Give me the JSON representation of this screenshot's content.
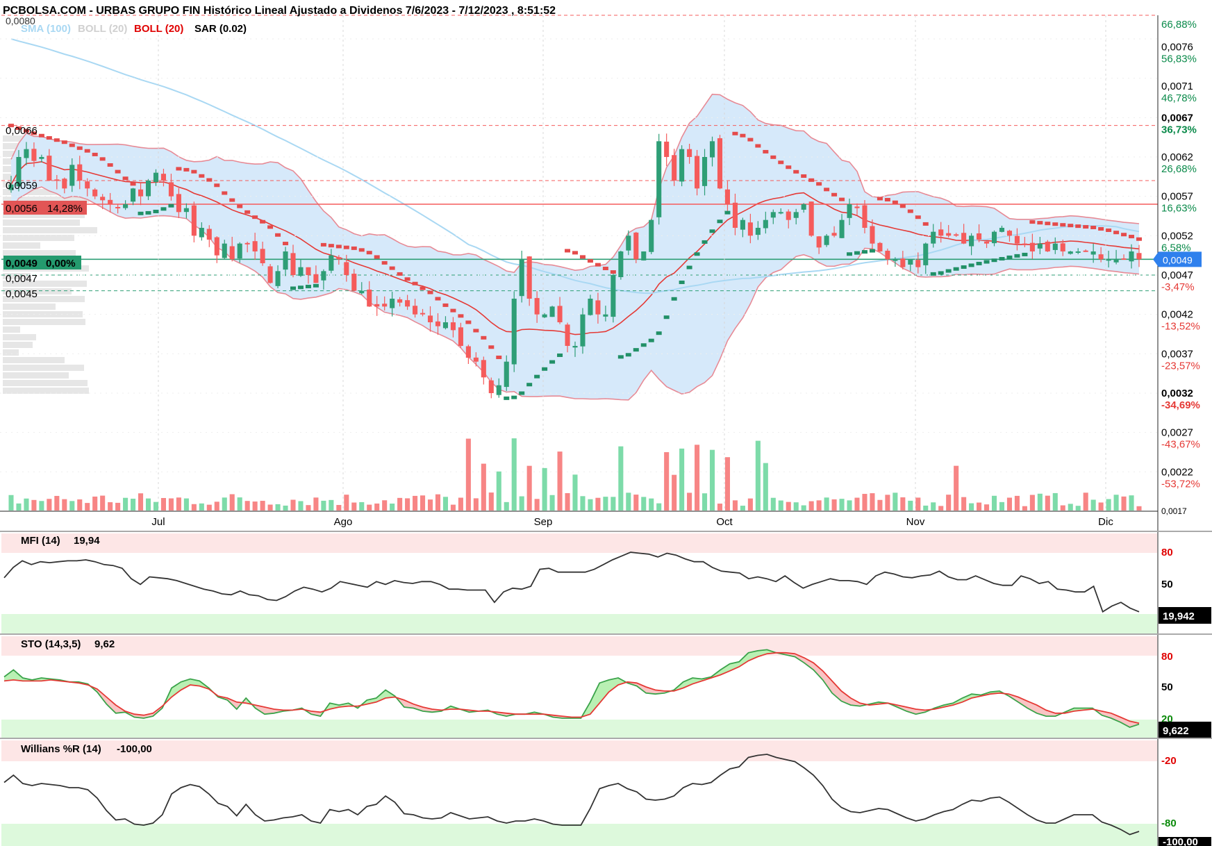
{
  "header": {
    "title": "PCBOLSA.COM - URBAS GRUPO FIN Histórico Lineal Ajustado a Dividenos 7/6/2023 - 7/12/2023 , 8:51:52"
  },
  "legend": {
    "sma": "SMA (100)",
    "boll_gray": "BOLL (20)",
    "boll_red": "BOLL (20)",
    "sar": "SAR (0.02)",
    "top_cut": "0,0080"
  },
  "colors": {
    "up": "#2e9e76",
    "down": "#f55b5b",
    "vol_up": "#7ddba9",
    "vol_down": "#f78585",
    "band_fill": "#d6e9fa",
    "band_line": "#e78a95",
    "mid_line": "#e53935",
    "sma_line": "#a9d8f3",
    "sar_up": "#219067",
    "sar_down": "#e54b4b",
    "ob_zone": "#fde6e6",
    "os_zone": "#ddf9dc",
    "price_marker": "#2f80ed"
  },
  "price_axis": {
    "ticks": [
      {
        "label": "0,0076",
        "pct": "56,83%"
      },
      {
        "label": "0,0071",
        "pct": "46,78%"
      },
      {
        "label": "0,0067",
        "pct": "36,73%"
      },
      {
        "label": "0,0062",
        "pct": "26,68%"
      },
      {
        "label": "0,0057",
        "pct": "16,63%"
      },
      {
        "label": "0,0052",
        "pct": "6,58%"
      },
      {
        "label": "0,0047",
        "pct": "-3,47%"
      },
      {
        "label": "0,0042",
        "pct": "-13,52%"
      },
      {
        "label": "0,0037",
        "pct": "-23,57%"
      },
      {
        "label": "0,0032",
        "pct": "-34,69%"
      },
      {
        "label": "0,0027",
        "pct": "-43,67%"
      },
      {
        "label": "0,0022",
        "pct": "-53,72%"
      }
    ],
    "top_pct": "66,88%",
    "bottom_cut": "0,0017",
    "current_price": "0,0049"
  },
  "levels": {
    "l_0066": "0,0066",
    "l_0059": "0,0059",
    "l_0056": "0,0056",
    "l_0056_pct": "14,28%",
    "l_0049": "0,0049",
    "l_0049_pct": "0,00%",
    "l_0047": "0,0047",
    "l_0045": "0,0045"
  },
  "months": [
    "Jul",
    "Ago",
    "Sep",
    "Oct",
    "Nov",
    "Dic"
  ],
  "mfi": {
    "label": "MFI (14)",
    "value": "19,94",
    "badge": "19,942",
    "ticks": [
      "80",
      "50"
    ]
  },
  "sto": {
    "label": "STO (14,3,5)",
    "value": "9,62",
    "badge": "9,622",
    "ticks": [
      "80",
      "50",
      "20"
    ]
  },
  "willr": {
    "label": "Willians %R (14)",
    "value": "-100,00",
    "badge": "-100,00",
    "ticks": [
      "-20",
      "-80"
    ]
  },
  "chart_data": {
    "type": "candlestick",
    "title": "PCBOLSA.COM - URBAS GRUPO FIN Histórico Lineal Ajustado a Dividenos 7/6/2023 - 7/12/2023 , 8:51:52",
    "ylim": [
      0.0017,
      0.008
    ],
    "months": [
      "Jul",
      "Ago",
      "Sep",
      "Oct",
      "Nov",
      "Dic"
    ],
    "closes": [
      0.00585,
      0.0062,
      0.0063,
      0.00615,
      0.0062,
      0.0059,
      0.0059,
      0.0058,
      0.0061,
      0.0059,
      0.0058,
      0.0057,
      0.00565,
      0.0056,
      0.00555,
      0.0056,
      0.0058,
      0.0057,
      0.0059,
      0.006,
      0.0059,
      0.0057,
      0.0055,
      0.00555,
      0.0052,
      0.0053,
      0.00515,
      0.00495,
      0.0051,
      0.0049,
      0.0051,
      0.0051,
      0.005,
      0.00485,
      0.0046,
      0.00475,
      0.005,
      0.0047,
      0.0048,
      0.0047,
      0.0046,
      0.00475,
      0.00495,
      0.0049,
      0.0047,
      0.0045,
      0.0045,
      0.0043,
      0.0043,
      0.0043,
      0.0044,
      0.00435,
      0.0043,
      0.0042,
      0.0042,
      0.0041,
      0.00405,
      0.0041,
      0.004,
      0.0038,
      0.00365,
      0.0036,
      0.0034,
      0.0032,
      0.0033,
      0.0036,
      0.0044,
      0.0049,
      0.0044,
      0.0042,
      0.0042,
      0.0043,
      0.0041,
      0.0038,
      0.0038,
      0.0042,
      0.0044,
      0.0042,
      0.0042,
      0.0047,
      0.005,
      0.0052,
      0.0049,
      0.005,
      0.0054,
      0.0064,
      0.0062,
      0.0059,
      0.0063,
      0.0062,
      0.0058,
      0.0062,
      0.0064,
      0.0058,
      0.0056,
      0.0053,
      0.0054,
      0.0052,
      0.0053,
      0.0054,
      0.0055,
      0.0055,
      0.0054,
      0.0055,
      0.0056,
      0.0052,
      0.00505,
      0.0052,
      0.0052,
      0.0054,
      0.0056,
      0.00555,
      0.0053,
      0.0051,
      0.005,
      0.0049,
      0.0049,
      0.0048,
      0.0049,
      0.0048,
      0.0051,
      0.00525,
      0.0052,
      0.0052,
      0.0052,
      0.0051,
      0.0052,
      0.00515,
      0.0051,
      0.00525,
      0.0053,
      0.0052,
      0.0051,
      0.0051,
      0.005,
      0.0051,
      0.005,
      0.0051,
      0.005,
      0.005,
      0.005,
      0.005,
      0.005,
      0.0049,
      0.0049,
      0.0049,
      0.0049,
      0.005,
      0.0049
    ],
    "bollinger_period": 20,
    "sma_period": 100,
    "sar_step": 0.02,
    "indicators": {
      "mfi_14": [
        56,
        67,
        74,
        70,
        73,
        72,
        73,
        74,
        74,
        75,
        73,
        70,
        69,
        66,
        55,
        49,
        57,
        56,
        55,
        53,
        50,
        47,
        44,
        42,
        39,
        38,
        42,
        38,
        37,
        33,
        32,
        36,
        42,
        46,
        44,
        41,
        45,
        52,
        50,
        48,
        46,
        52,
        49,
        53,
        51,
        50,
        52,
        52,
        49,
        44,
        44,
        43,
        43,
        43,
        30,
        41,
        45,
        44,
        47,
        65,
        66,
        62,
        62,
        62,
        62,
        65,
        70,
        75,
        79,
        83,
        82,
        81,
        78,
        82,
        80,
        76,
        73,
        73,
        67,
        63,
        62,
        61,
        55,
        57,
        55,
        52,
        58,
        51,
        45,
        49,
        52,
        55,
        53,
        53,
        52,
        49,
        58,
        62,
        60,
        57,
        56,
        58,
        59,
        63,
        57,
        54,
        54,
        58,
        54,
        50,
        48,
        48,
        58,
        55,
        50,
        52,
        44,
        43,
        41,
        41,
        47,
        20,
        26,
        30,
        24,
        20
      ],
      "sto_k": [
        61,
        68,
        60,
        58,
        60,
        59,
        58,
        56,
        56,
        54,
        46,
        34,
        25,
        26,
        21,
        20,
        22,
        30,
        50,
        56,
        59,
        57,
        50,
        41,
        38,
        29,
        40,
        30,
        24,
        25,
        27,
        28,
        30,
        24,
        22,
        35,
        33,
        35,
        30,
        38,
        40,
        48,
        42,
        31,
        30,
        27,
        26,
        27,
        32,
        29,
        26,
        27,
        28,
        24,
        22,
        24,
        24,
        26,
        24,
        21,
        20,
        20,
        20,
        36,
        55,
        58,
        60,
        55,
        52,
        45,
        44,
        45,
        48,
        56,
        60,
        59,
        61,
        68,
        74,
        76,
        85,
        87,
        88,
        85,
        83,
        81,
        75,
        68,
        58,
        45,
        37,
        33,
        32,
        34,
        36,
        35,
        31,
        27,
        24,
        26,
        30,
        33,
        35,
        40,
        44,
        43,
        46,
        47,
        42,
        36,
        30,
        25,
        22,
        22,
        26,
        30,
        30,
        30,
        23,
        20,
        16,
        11,
        14
      ],
      "sto_d": [
        57,
        58,
        57,
        57,
        57,
        58,
        57,
        56,
        55,
        53,
        49,
        41,
        33,
        27,
        24,
        23,
        25,
        32,
        41,
        48,
        53,
        52,
        49,
        42,
        40,
        36,
        35,
        33,
        31,
        29,
        28,
        28,
        29,
        27,
        26,
        29,
        31,
        32,
        32,
        34,
        36,
        40,
        41,
        38,
        34,
        31,
        29,
        28,
        29,
        29,
        28,
        27,
        27,
        26,
        25,
        24,
        24,
        24,
        24,
        23,
        22,
        21,
        21,
        24,
        35,
        46,
        53,
        56,
        55,
        51,
        48,
        47,
        47,
        50,
        54,
        57,
        60,
        63,
        67,
        71,
        77,
        81,
        84,
        85,
        85,
        84,
        80,
        75,
        67,
        57,
        47,
        40,
        35,
        33,
        34,
        35,
        33,
        31,
        29,
        28,
        29,
        31,
        33,
        36,
        40,
        42,
        44,
        45,
        44,
        41,
        37,
        33,
        28,
        25,
        25,
        27,
        28,
        29,
        27,
        25,
        21,
        17,
        15
      ]
    }
  }
}
